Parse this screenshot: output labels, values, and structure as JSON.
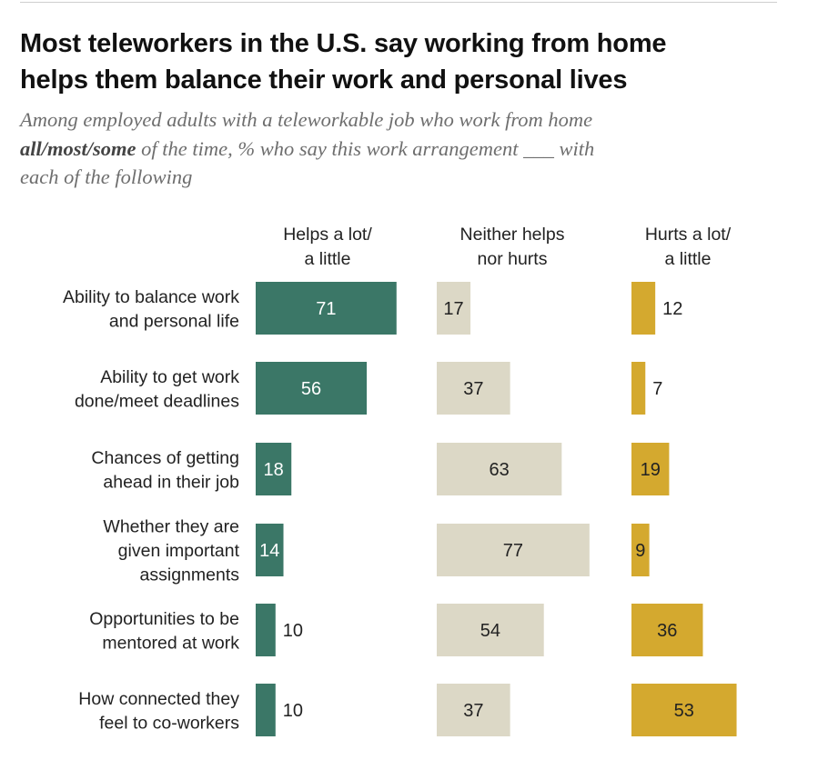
{
  "title_line1": "Most teleworkers in the U.S. say working from home",
  "title_line2": "helps them balance their work and personal lives",
  "subtitle": {
    "part1": "Among employed adults with a teleworkable job who work from home",
    "bold": "all/most/some",
    "part2": " of the time, % who say this work arrangement ___ with",
    "part3": "each of the following"
  },
  "colors": {
    "helps": "#3b7767",
    "neither": "#dcd8c6",
    "hurts": "#d4a92f",
    "label_on_dark": "#ffffff",
    "label_on_light": "#222222"
  },
  "chart_data": {
    "type": "bar",
    "orientation": "horizontal",
    "title": "Most teleworkers in the U.S. say working from home helps them balance their work and personal lives",
    "value_scale_max": 100,
    "series": [
      {
        "name": "Helps a lot/ a little",
        "header_lines": [
          "Helps a lot/",
          "a little"
        ],
        "values": [
          71,
          56,
          18,
          14,
          10,
          10
        ]
      },
      {
        "name": "Neither helps nor hurts",
        "header_lines": [
          "Neither helps",
          "nor hurts"
        ],
        "values": [
          17,
          37,
          63,
          77,
          54,
          37
        ]
      },
      {
        "name": "Hurts a lot/ a little",
        "header_lines": [
          "Hurts a lot/",
          "a little"
        ],
        "values": [
          12,
          7,
          19,
          9,
          36,
          53
        ]
      }
    ],
    "categories": [
      {
        "lines": [
          "Ability to balance work",
          "and personal life"
        ]
      },
      {
        "lines": [
          "Ability to get work",
          "done/meet deadlines"
        ]
      },
      {
        "lines": [
          "Chances of getting",
          "ahead in their job"
        ]
      },
      {
        "lines": [
          "Whether they are",
          "given important",
          "assignments"
        ]
      },
      {
        "lines": [
          "Opportunities to be",
          "mentored at work"
        ]
      },
      {
        "lines": [
          "How connected they",
          "feel to co-workers"
        ]
      }
    ]
  }
}
